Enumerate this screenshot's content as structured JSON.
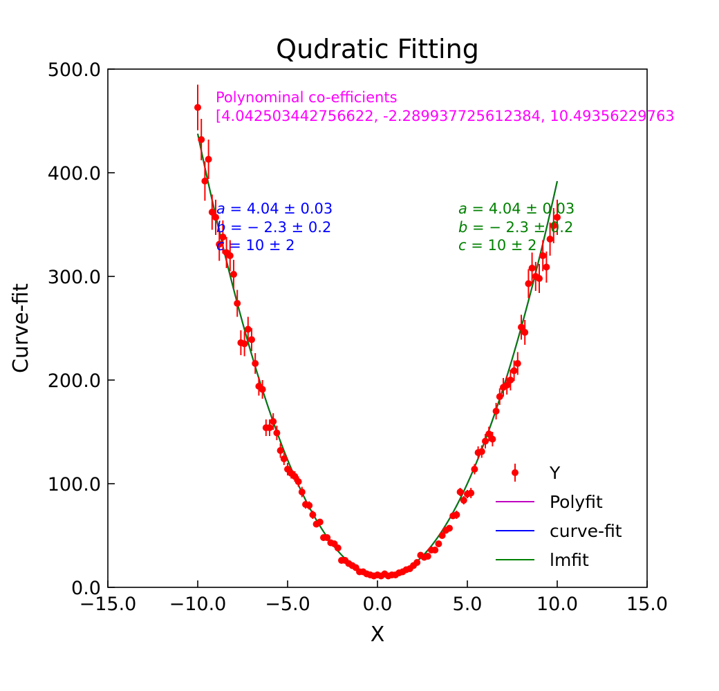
{
  "chart_data": {
    "type": "scatter",
    "title": "Qudratic Fitting",
    "xlabel": "X",
    "ylabel": "Curve-fit",
    "xlim": [
      -15,
      15
    ],
    "ylim": [
      0,
      500
    ],
    "xticks": [
      "−15.0",
      "−10.0",
      "−5.0",
      "0.0",
      "5.0",
      "10.0",
      "15.0"
    ],
    "yticks": [
      "0.0",
      "100.0",
      "200.0",
      "300.0",
      "400.0",
      "500.0"
    ],
    "xtick_values": [
      -15,
      -10,
      -5,
      0,
      5,
      10,
      15
    ],
    "ytick_values": [
      0,
      100,
      200,
      300,
      400,
      500
    ],
    "grid": false,
    "legend": {
      "placement": "lower-right",
      "entries": [
        {
          "label": "Y",
          "kind": "errorbar",
          "color": "#ff0000"
        },
        {
          "label": "Polyfit",
          "kind": "line",
          "color": "#bf00bf"
        },
        {
          "label": "curve-fit",
          "kind": "line",
          "color": "#0000ff"
        },
        {
          "label": "lmfit",
          "kind": "line",
          "color": "#008000"
        }
      ]
    },
    "fit": {
      "a": 4.042503442756622,
      "b": -2.289937725612384,
      "c": 10.49356229763,
      "x_range": [
        -10,
        10
      ]
    },
    "series": [
      {
        "name": "Y",
        "kind": "errorbar",
        "color": "#ff0000",
        "x": [
          -10.0,
          -9.8,
          -9.6,
          -9.4,
          -9.2,
          -9.0,
          -8.8,
          -8.6,
          -8.4,
          -8.2,
          -8.0,
          -7.8,
          -7.6,
          -7.4,
          -7.2,
          -7.0,
          -6.8,
          -6.6,
          -6.4,
          -6.2,
          -6.0,
          -5.8,
          -5.6,
          -5.4,
          -5.2,
          -5.0,
          -4.8,
          -4.6,
          -4.4,
          -4.2,
          -4.0,
          -3.8,
          -3.6,
          -3.4,
          -3.2,
          -3.0,
          -2.8,
          -2.6,
          -2.4,
          -2.2,
          -2.0,
          -1.8,
          -1.6,
          -1.4,
          -1.2,
          -1.0,
          -0.8,
          -0.6,
          -0.4,
          -0.2,
          0.0,
          0.2,
          0.4,
          0.6,
          0.8,
          1.0,
          1.2,
          1.4,
          1.6,
          1.8,
          2.0,
          2.2,
          2.4,
          2.6,
          2.8,
          3.0,
          3.2,
          3.4,
          3.6,
          3.8,
          4.0,
          4.2,
          4.4,
          4.6,
          4.8,
          5.0,
          5.2,
          5.4,
          5.6,
          5.8,
          6.0,
          6.2,
          6.4,
          6.6,
          6.8,
          7.0,
          7.2,
          7.4,
          7.6,
          7.8,
          8.0,
          8.2,
          8.4,
          8.6,
          8.8,
          9.0,
          9.2,
          9.4,
          9.6,
          9.8,
          10.0
        ],
        "y": [
          463,
          432,
          392,
          413,
          362,
          357,
          331,
          338,
          323,
          320,
          302,
          274,
          236,
          235,
          249,
          239,
          216,
          194,
          191,
          154,
          154,
          160,
          149,
          132,
          124,
          114,
          110,
          107,
          102,
          92,
          80,
          79,
          70,
          61,
          63,
          48,
          48,
          43,
          42,
          38,
          26,
          26,
          23,
          21,
          19,
          15,
          15,
          13,
          12,
          11,
          12,
          11,
          13,
          11,
          12,
          12,
          14,
          15,
          17,
          18,
          21,
          24,
          31,
          29,
          30,
          36,
          36,
          42,
          50,
          55,
          57,
          69,
          70,
          92,
          84,
          90,
          91,
          114,
          130,
          131,
          141,
          148,
          143,
          170,
          184,
          193,
          195,
          200,
          209,
          216,
          251,
          246,
          293,
          308,
          300,
          298,
          320,
          309,
          336,
          349,
          357
        ],
        "yerr": [
          22,
          20,
          19,
          19,
          17,
          17,
          16,
          16,
          15,
          15,
          14,
          13,
          12,
          12,
          12,
          11,
          10,
          9,
          9,
          8,
          8,
          8,
          7,
          7,
          6,
          6,
          5,
          5,
          5,
          5,
          4,
          4,
          4,
          3,
          3,
          3,
          3,
          2,
          2,
          2,
          2,
          2,
          2,
          1,
          1,
          1,
          1,
          1,
          1,
          1,
          1,
          1,
          1,
          1,
          1,
          1,
          1,
          1,
          1,
          1,
          2,
          2,
          2,
          2,
          2,
          2,
          2,
          3,
          3,
          3,
          3,
          3,
          4,
          4,
          4,
          4,
          5,
          5,
          6,
          6,
          7,
          7,
          7,
          8,
          8,
          9,
          9,
          10,
          10,
          11,
          12,
          12,
          14,
          15,
          14,
          14,
          15,
          15,
          16,
          17,
          17
        ]
      },
      {
        "name": "Polyfit",
        "kind": "line",
        "color": "#bf00bf"
      },
      {
        "name": "curve-fit",
        "kind": "line",
        "color": "#0000ff"
      },
      {
        "name": "lmfit",
        "kind": "line",
        "color": "#008000"
      }
    ],
    "annotations": {
      "polynomial": {
        "color": "#ff00ff",
        "line1": "Polynominal co-efficients",
        "line2": "[4.042503442756622, -2.289937725612384, 10.49356229763"
      },
      "curve_fit": {
        "color": "#0000ff",
        "a_sym": "a",
        "a_val": " = 4.04 ± 0.03",
        "b_sym": "b",
        "b_val": " = − 2.3 ± 0.2",
        "c_sym": "c",
        "c_val": " = 10 ± 2"
      },
      "lmfit": {
        "color": "#008000",
        "a_sym": "a",
        "a_val": " = 4.04 ± 0.03",
        "b_sym": "b",
        "b_val": " = − 2.3 ± 0.2",
        "c_sym": "c",
        "c_val": " = 10 ± 2"
      }
    }
  }
}
